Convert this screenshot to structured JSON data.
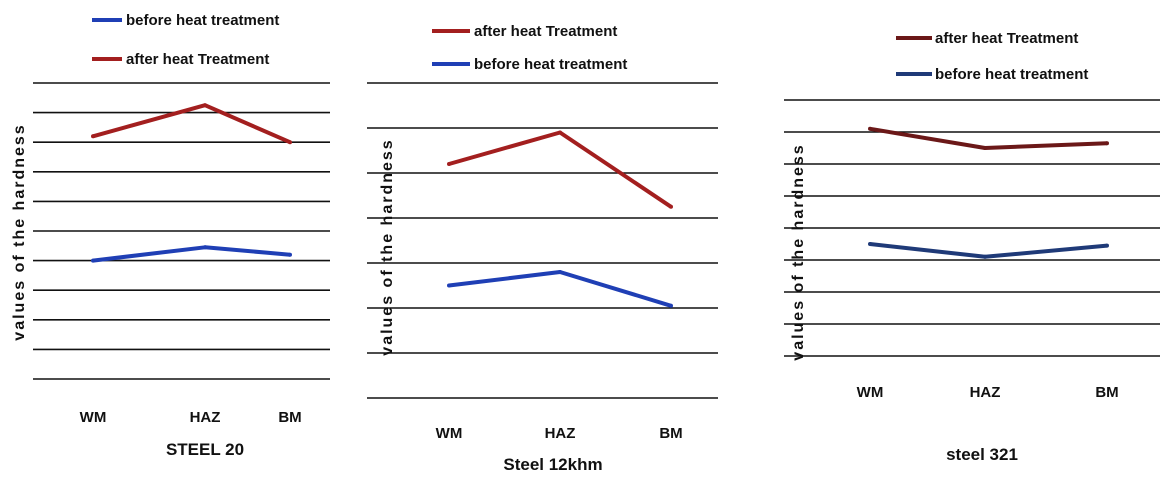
{
  "chart_data": [
    {
      "type": "line",
      "title": "STEEL 20",
      "xlabel": "",
      "ylabel": "values of the hardness",
      "categories": [
        "WM",
        "HAZ",
        "BM"
      ],
      "legend_position": "top",
      "grid": true,
      "ylim": [
        0,
        10
      ],
      "series": [
        {
          "name": "before heat treatment",
          "color": "#1f3fb5",
          "values": [
            4.0,
            4.45,
            4.2
          ]
        },
        {
          "name": "after heat Treatment",
          "color": "#a31f1f",
          "values": [
            8.2,
            9.25,
            8.0
          ]
        }
      ]
    },
    {
      "type": "line",
      "title": "Steel 12khm",
      "xlabel": "",
      "ylabel": "values of the hardness",
      "categories": [
        "WM",
        "HAZ",
        "BM"
      ],
      "legend_position": "top",
      "grid": true,
      "ylim": [
        0,
        7
      ],
      "series": [
        {
          "name": "after heat Treatment",
          "color": "#a31f1f",
          "values": [
            5.2,
            5.9,
            4.25
          ]
        },
        {
          "name": "before heat treatment",
          "color": "#1f3fb5",
          "values": [
            2.5,
            2.8,
            2.05
          ]
        }
      ]
    },
    {
      "type": "line",
      "title": "steel 321",
      "xlabel": "",
      "ylabel": "values of the hardness",
      "categories": [
        "WM",
        "HAZ",
        "BM"
      ],
      "legend_position": "top",
      "grid": true,
      "ylim": [
        0,
        8
      ],
      "series": [
        {
          "name": "after heat Treatment",
          "color": "#6b1818",
          "values": [
            7.1,
            6.5,
            6.65
          ]
        },
        {
          "name": "before heat treatment",
          "color": "#1f3a78",
          "values": [
            3.5,
            3.1,
            3.45
          ]
        }
      ]
    }
  ]
}
